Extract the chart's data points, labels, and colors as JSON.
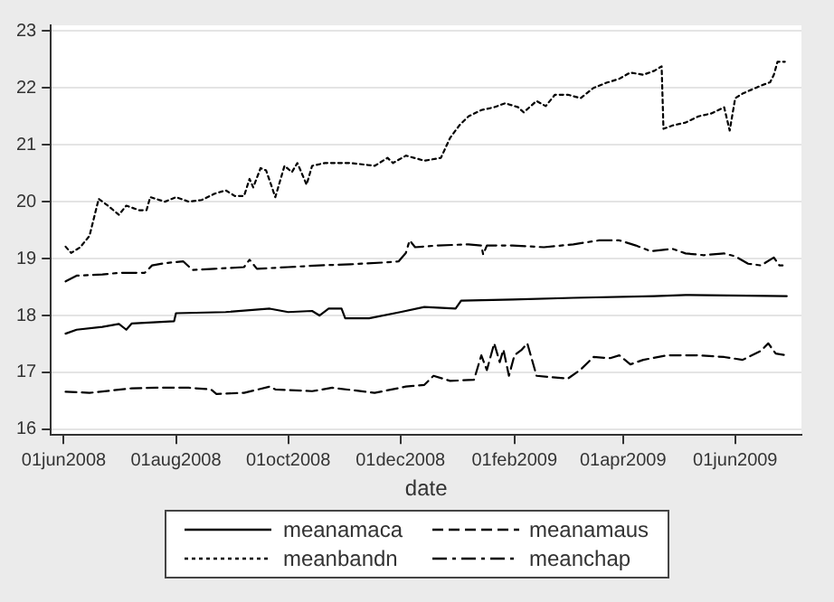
{
  "chart_data": {
    "type": "line",
    "xlabel": "date",
    "xlim": [
      "2008-05-25",
      "2009-07-07"
    ],
    "ylim": [
      15.9,
      23.1
    ],
    "xticks": [
      {
        "value": "2008-06-01",
        "label": "01jun2008"
      },
      {
        "value": "2008-08-01",
        "label": "01aug2008"
      },
      {
        "value": "2008-10-01",
        "label": "01oct2008"
      },
      {
        "value": "2008-12-01",
        "label": "01dec2008"
      },
      {
        "value": "2009-02-01",
        "label": "01feb2009"
      },
      {
        "value": "2009-04-01",
        "label": "01apr2009"
      },
      {
        "value": "2009-06-01",
        "label": "01jun2009"
      }
    ],
    "yticks": [
      16,
      17,
      18,
      19,
      20,
      21,
      22,
      23
    ],
    "grid": "y",
    "legend": "bottom",
    "marker": "none",
    "series": [
      {
        "name": "meanamaca",
        "color": "#000000",
        "line_style": "solid",
        "x": [
          "2008-06-02",
          "2008-06-08",
          "2008-06-22",
          "2008-07-01",
          "2008-07-05",
          "2008-07-08",
          "2008-07-31",
          "2008-08-01",
          "2008-08-28",
          "2008-09-21",
          "2008-10-01",
          "2008-10-14",
          "2008-10-18",
          "2008-10-23",
          "2008-10-30",
          "2008-11-01",
          "2008-11-14",
          "2008-12-01",
          "2008-12-14",
          "2008-12-31",
          "2009-01-03",
          "2009-01-31",
          "2009-03-05",
          "2009-04-18",
          "2009-05-05",
          "2009-06-29"
        ],
        "values": [
          17.68,
          17.75,
          17.8,
          17.85,
          17.75,
          17.86,
          17.9,
          18.04,
          18.06,
          18.12,
          18.06,
          18.08,
          18.0,
          18.12,
          18.12,
          17.95,
          17.95,
          18.06,
          18.15,
          18.12,
          18.26,
          18.28,
          18.31,
          18.34,
          18.36,
          18.34
        ]
      },
      {
        "name": "meanamaus",
        "color": "#000000",
        "line_style": "dashed",
        "x": [
          "2008-06-02",
          "2008-06-15",
          "2008-07-08",
          "2008-07-22",
          "2008-08-08",
          "2008-08-20",
          "2008-08-23",
          "2008-09-07",
          "2008-09-21",
          "2008-09-24",
          "2008-10-14",
          "2008-10-25",
          "2008-11-17",
          "2008-12-01",
          "2008-12-04",
          "2008-12-14",
          "2008-12-19",
          "2008-12-28",
          "2009-01-10",
          "2009-01-14",
          "2009-01-17",
          "2009-01-21",
          "2009-01-24",
          "2009-01-26",
          "2009-01-29",
          "2009-02-01",
          "2009-02-05",
          "2009-02-08",
          "2009-02-13",
          "2009-02-20",
          "2009-03-02",
          "2009-03-09",
          "2009-03-16",
          "2009-03-25",
          "2009-03-30",
          "2009-04-05",
          "2009-04-12",
          "2009-04-25",
          "2009-05-12",
          "2009-05-26",
          "2009-06-05",
          "2009-06-15",
          "2009-06-19",
          "2009-06-23",
          "2009-06-29"
        ],
        "values": [
          16.66,
          16.64,
          16.72,
          16.73,
          16.73,
          16.7,
          16.62,
          16.64,
          16.75,
          16.7,
          16.67,
          16.73,
          16.64,
          16.73,
          16.75,
          16.78,
          16.94,
          16.85,
          16.87,
          17.3,
          17.04,
          17.51,
          17.18,
          17.4,
          16.94,
          17.3,
          17.4,
          17.51,
          16.94,
          16.92,
          16.89,
          17.05,
          17.27,
          17.25,
          17.3,
          17.14,
          17.22,
          17.3,
          17.3,
          17.27,
          17.22,
          17.38,
          17.51,
          17.33,
          17.3
        ]
      },
      {
        "name": "meanbandn",
        "color": "#000000",
        "line_style": "dotted",
        "x": [
          "2008-06-02",
          "2008-06-05",
          "2008-06-10",
          "2008-06-15",
          "2008-06-20",
          "2008-06-25",
          "2008-07-01",
          "2008-07-05",
          "2008-07-12",
          "2008-07-16",
          "2008-07-18",
          "2008-07-26",
          "2008-08-01",
          "2008-08-08",
          "2008-08-15",
          "2008-08-22",
          "2008-08-28",
          "2008-09-02",
          "2008-09-07",
          "2008-09-10",
          "2008-09-12",
          "2008-09-16",
          "2008-09-19",
          "2008-09-24",
          "2008-09-29",
          "2008-10-03",
          "2008-10-06",
          "2008-10-11",
          "2008-10-14",
          "2008-10-21",
          "2008-11-04",
          "2008-11-17",
          "2008-11-24",
          "2008-11-27",
          "2008-12-04",
          "2008-12-14",
          "2008-12-23",
          "2008-12-28",
          "2009-01-02",
          "2009-01-07",
          "2009-01-14",
          "2009-01-21",
          "2009-01-27",
          "2009-02-03",
          "2009-02-06",
          "2009-02-13",
          "2009-02-18",
          "2009-02-23",
          "2009-03-02",
          "2009-03-09",
          "2009-03-16",
          "2009-03-23",
          "2009-03-30",
          "2009-04-05",
          "2009-04-12",
          "2009-04-18",
          "2009-04-22",
          "2009-04-23",
          "2009-04-28",
          "2009-05-05",
          "2009-05-12",
          "2009-05-19",
          "2009-05-26",
          "2009-05-29",
          "2009-06-01",
          "2009-06-05",
          "2009-06-10",
          "2009-06-15",
          "2009-06-20",
          "2009-06-22",
          "2009-06-24",
          "2009-06-28"
        ],
        "values": [
          19.21,
          19.1,
          19.2,
          19.4,
          20.05,
          19.93,
          19.77,
          19.93,
          19.85,
          19.85,
          20.08,
          20.0,
          20.08,
          20.0,
          20.03,
          20.14,
          20.2,
          20.1,
          20.1,
          20.4,
          20.25,
          20.59,
          20.55,
          20.08,
          20.63,
          20.52,
          20.68,
          20.3,
          20.63,
          20.68,
          20.68,
          20.63,
          20.77,
          20.68,
          20.81,
          20.72,
          20.77,
          21.12,
          21.34,
          21.5,
          21.61,
          21.66,
          21.73,
          21.66,
          21.57,
          21.77,
          21.68,
          21.88,
          21.88,
          21.82,
          22.0,
          22.09,
          22.16,
          22.27,
          22.23,
          22.3,
          22.38,
          21.28,
          21.34,
          21.39,
          21.5,
          21.55,
          21.66,
          21.25,
          21.82,
          21.9,
          21.97,
          22.04,
          22.1,
          22.23,
          22.46,
          22.46
        ]
      },
      {
        "name": "meanchap",
        "color": "#000000",
        "line_style": "dashdot",
        "x": [
          "2008-06-02",
          "2008-06-08",
          "2008-06-22",
          "2008-07-01",
          "2008-07-15",
          "2008-07-19",
          "2008-07-26",
          "2008-08-05",
          "2008-08-10",
          "2008-08-22",
          "2008-09-07",
          "2008-09-10",
          "2008-09-14",
          "2008-10-01",
          "2008-10-18",
          "2008-11-04",
          "2008-11-21",
          "2008-11-30",
          "2008-12-04",
          "2008-12-06",
          "2008-12-09",
          "2008-12-21",
          "2009-01-07",
          "2009-01-14",
          "2009-01-15",
          "2009-01-17",
          "2009-01-31",
          "2009-02-17",
          "2009-03-05",
          "2009-03-19",
          "2009-03-30",
          "2009-04-08",
          "2009-04-16",
          "2009-04-28",
          "2009-05-05",
          "2009-05-15",
          "2009-05-26",
          "2009-06-01",
          "2009-06-08",
          "2009-06-15",
          "2009-06-22",
          "2009-06-25",
          "2009-06-29"
        ],
        "values": [
          18.6,
          18.7,
          18.72,
          18.75,
          18.75,
          18.88,
          18.92,
          18.95,
          18.8,
          18.82,
          18.85,
          18.98,
          18.82,
          18.85,
          18.88,
          18.9,
          18.93,
          18.95,
          19.1,
          19.32,
          19.2,
          19.23,
          19.25,
          19.23,
          19.07,
          19.23,
          19.23,
          19.2,
          19.25,
          19.32,
          19.32,
          19.23,
          19.13,
          19.17,
          19.09,
          19.06,
          19.09,
          19.04,
          18.91,
          18.88,
          19.02,
          18.88,
          18.88
        ]
      }
    ]
  }
}
